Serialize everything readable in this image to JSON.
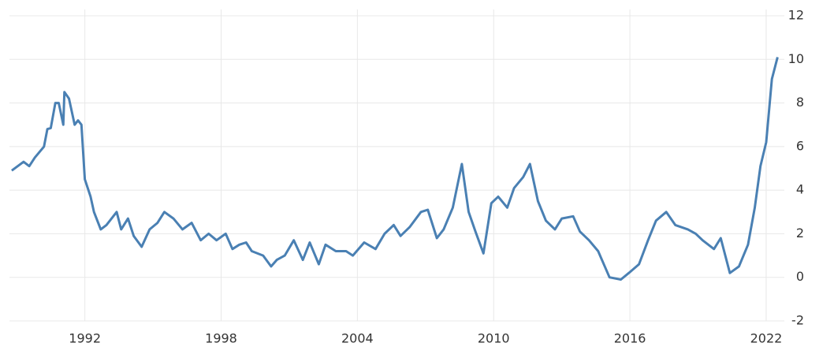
{
  "chart_data": {
    "type": "line",
    "x": [
      1988.78,
      1989.3,
      1989.55,
      1989.8,
      1990.2,
      1990.35,
      1990.5,
      1990.7,
      1990.85,
      1991.05,
      1991.1,
      1991.3,
      1991.55,
      1991.7,
      1991.85,
      1992.0,
      1992.25,
      1992.4,
      1992.7,
      1992.95,
      1993.4,
      1993.6,
      1993.9,
      1994.15,
      1994.5,
      1994.85,
      1995.2,
      1995.5,
      1995.9,
      1996.3,
      1996.7,
      1997.1,
      1997.45,
      1997.8,
      1998.2,
      1998.5,
      1998.8,
      1999.1,
      1999.35,
      1999.85,
      2000.2,
      2000.45,
      2000.8,
      2001.2,
      2001.6,
      2001.9,
      2002.3,
      2002.6,
      2003.05,
      2003.5,
      2003.8,
      2004.3,
      2004.8,
      2005.2,
      2005.6,
      2005.9,
      2006.3,
      2006.8,
      2007.1,
      2007.5,
      2007.8,
      2008.2,
      2008.6,
      2008.9,
      2009.2,
      2009.55,
      2009.9,
      2010.2,
      2010.6,
      2010.9,
      2011.3,
      2011.6,
      2011.95,
      2012.3,
      2012.7,
      2013.0,
      2013.5,
      2013.8,
      2014.2,
      2014.6,
      2015.1,
      2015.6,
      2015.95,
      2016.4,
      2016.8,
      2017.15,
      2017.6,
      2018.0,
      2018.55,
      2018.9,
      2019.2,
      2019.7,
      2020.0,
      2020.4,
      2020.8,
      2021.2,
      2021.5,
      2021.75,
      2022.0,
      2022.25,
      2022.5
    ],
    "series": [
      {
        "color": "#4a80b3",
        "values": [
          4.9,
          5.3,
          5.1,
          5.5,
          6.0,
          6.8,
          6.85,
          8.0,
          8.0,
          7.0,
          8.5,
          8.2,
          7.0,
          7.2,
          7.0,
          4.5,
          3.7,
          3.0,
          2.2,
          2.4,
          3.0,
          2.2,
          2.7,
          1.9,
          1.4,
          2.2,
          2.5,
          3.0,
          2.7,
          2.2,
          2.5,
          1.7,
          2.0,
          1.7,
          2.0,
          1.3,
          1.5,
          1.6,
          1.2,
          1.0,
          0.5,
          0.8,
          1.0,
          1.7,
          0.8,
          1.6,
          0.6,
          1.5,
          1.2,
          1.2,
          1.0,
          1.6,
          1.3,
          2.0,
          2.4,
          1.9,
          2.3,
          3.0,
          3.1,
          1.8,
          2.2,
          3.2,
          5.2,
          3.0,
          2.1,
          1.1,
          3.4,
          3.7,
          3.2,
          4.1,
          4.6,
          5.2,
          3.5,
          2.6,
          2.2,
          2.7,
          2.8,
          2.1,
          1.7,
          1.2,
          0.0,
          -0.1,
          0.2,
          0.6,
          1.7,
          2.6,
          3.0,
          2.4,
          2.2,
          2.0,
          1.7,
          1.3,
          1.8,
          0.2,
          0.5,
          1.5,
          3.2,
          5.1,
          6.2,
          9.1,
          10.1
        ]
      }
    ],
    "xlim": [
      1988.68,
      2022.8
    ],
    "xticks": [
      1992,
      1998,
      2004,
      2010,
      2016,
      2022
    ],
    "ylim": [
      -2,
      12
    ],
    "yticks": [
      -2,
      0,
      2,
      4,
      6,
      8,
      10,
      12
    ],
    "grid": true
  }
}
